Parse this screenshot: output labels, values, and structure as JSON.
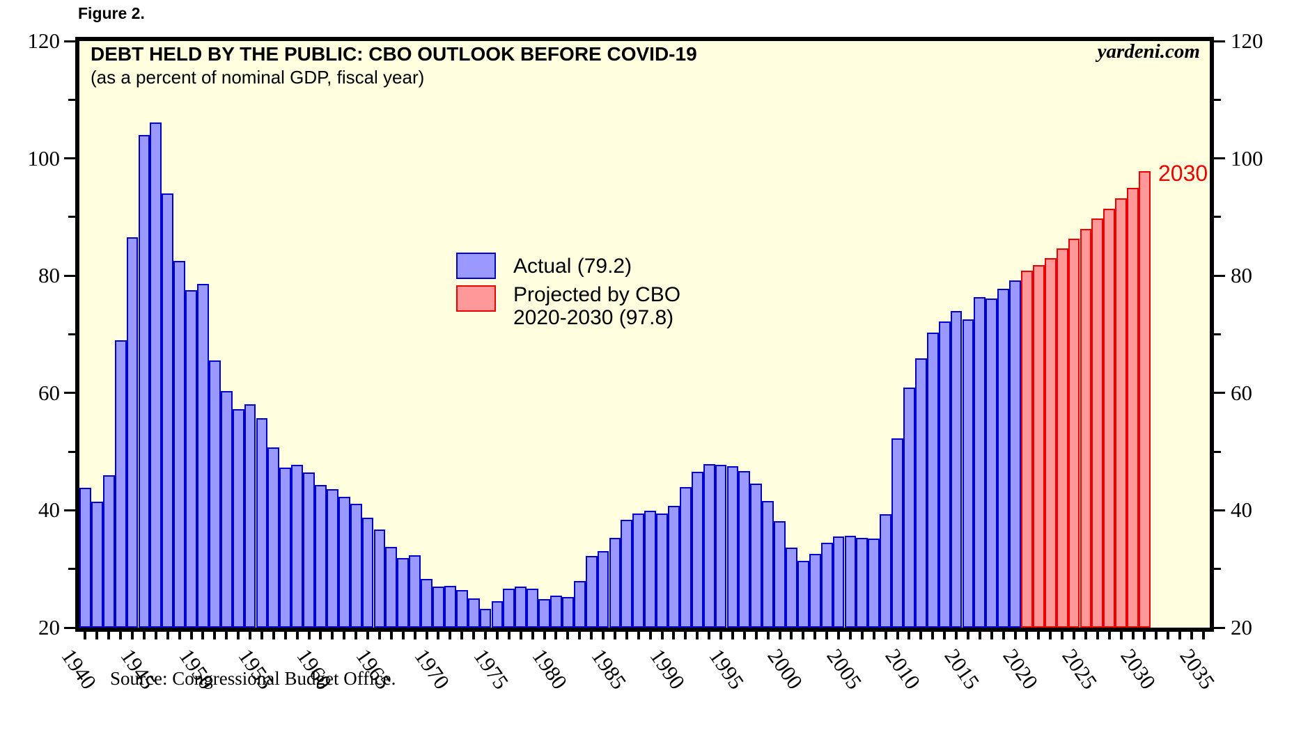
{
  "figure_label": "Figure 2.",
  "title": "DEBT HELD BY THE PUBLIC: CBO OUTLOOK BEFORE COVID-19",
  "subtitle": "(as a percent of nominal GDP, fiscal year)",
  "watermark": "yardeni.com",
  "source_note": "Source: Congressional Budget Office.",
  "annotation": {
    "text": "2030",
    "color": "#ee0000"
  },
  "legend": {
    "actual_label": "Actual (79.2)",
    "projected_label_line1": "Projected by CBO",
    "projected_label_line2": "2020-2030 (97.8)"
  },
  "colors": {
    "plot_background": "#ffffe0",
    "actual_fill": "#9999ff",
    "actual_border": "#0000cc",
    "projected_fill": "#ff9999",
    "projected_border": "#ee0000",
    "frame": "#000000"
  },
  "axes": {
    "y": {
      "min": 20,
      "max": 120,
      "major_tick_labels": [
        20,
        40,
        60,
        80,
        100,
        120
      ],
      "minor_ticks": [
        30,
        50,
        70,
        90,
        110
      ],
      "label_sides": [
        "left",
        "right"
      ]
    },
    "x": {
      "tick_every_year_start": 1940,
      "tick_every_year_end": 2035,
      "label_years": [
        1940,
        1945,
        1950,
        1955,
        1960,
        1965,
        1970,
        1975,
        1980,
        1985,
        1990,
        1995,
        2000,
        2005,
        2010,
        2015,
        2020,
        2025,
        2030,
        2035
      ]
    }
  },
  "chart_data": {
    "type": "bar",
    "title": "DEBT HELD BY THE PUBLIC: CBO OUTLOOK BEFORE COVID-19",
    "subtitle": "(as a percent of nominal GDP, fiscal year)",
    "ylabel": "percent of nominal GDP",
    "ylim": [
      20,
      120
    ],
    "grid": false,
    "legend_position": "center-left inside plot",
    "series": [
      {
        "name": "Actual (79.2)",
        "start_year": 1940,
        "end_year": 2019,
        "values": [
          43.8,
          41.5,
          46.0,
          69.0,
          86.5,
          104.0,
          106.1,
          94.0,
          82.5,
          77.5,
          78.6,
          65.5,
          60.3,
          57.3,
          58.1,
          55.7,
          50.7,
          47.3,
          47.8,
          46.5,
          44.3,
          43.6,
          42.3,
          41.1,
          38.8,
          36.7,
          33.8,
          31.9,
          32.3,
          28.3,
          27.0,
          27.1,
          26.4,
          25.0,
          23.2,
          24.5,
          26.7,
          27.0,
          26.6,
          24.9,
          25.5,
          25.2,
          28.0,
          32.2,
          33.1,
          35.3,
          38.4,
          39.5,
          39.9,
          39.4,
          40.8,
          44.0,
          46.6,
          47.9,
          47.7,
          47.5,
          46.7,
          44.5,
          41.6,
          38.2,
          33.6,
          31.4,
          32.6,
          34.5,
          35.5,
          35.6,
          35.3,
          35.2,
          39.3,
          52.3,
          60.9,
          65.9,
          70.3,
          72.2,
          74.0,
          72.6,
          76.4,
          76.1,
          77.8,
          79.2
        ]
      },
      {
        "name": "Projected by CBO 2020-2030 (97.8)",
        "start_year": 2020,
        "end_year": 2030,
        "values": [
          80.8,
          81.8,
          83.0,
          84.7,
          86.3,
          88.0,
          89.8,
          91.4,
          93.2,
          95.0,
          97.8
        ]
      }
    ]
  }
}
